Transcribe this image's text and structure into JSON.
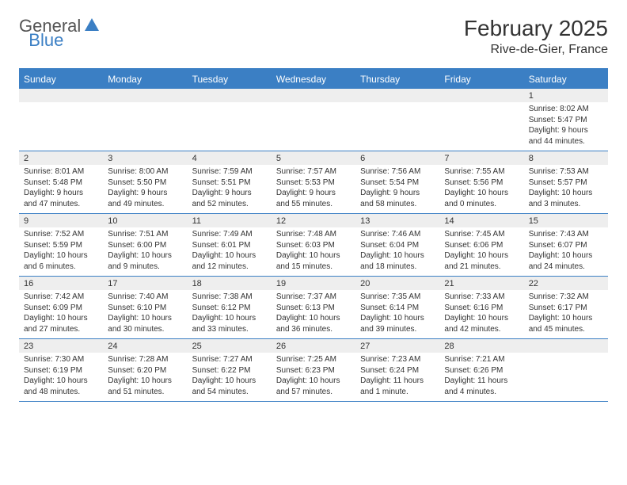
{
  "logo": {
    "part1": "General",
    "part2": "Blue"
  },
  "title": "February 2025",
  "location": "Rive-de-Gier, France",
  "colors": {
    "accent": "#3b7fc4",
    "header_bg": "#3b7fc4",
    "header_text": "#ffffff",
    "daynum_bg": "#eeeeee",
    "text": "#333333",
    "background": "#ffffff"
  },
  "day_names": [
    "Sunday",
    "Monday",
    "Tuesday",
    "Wednesday",
    "Thursday",
    "Friday",
    "Saturday"
  ],
  "weeks": [
    [
      null,
      null,
      null,
      null,
      null,
      null,
      {
        "n": "1",
        "sr": "Sunrise: 8:02 AM",
        "ss": "Sunset: 5:47 PM",
        "d1": "Daylight: 9 hours",
        "d2": "and 44 minutes."
      }
    ],
    [
      {
        "n": "2",
        "sr": "Sunrise: 8:01 AM",
        "ss": "Sunset: 5:48 PM",
        "d1": "Daylight: 9 hours",
        "d2": "and 47 minutes."
      },
      {
        "n": "3",
        "sr": "Sunrise: 8:00 AM",
        "ss": "Sunset: 5:50 PM",
        "d1": "Daylight: 9 hours",
        "d2": "and 49 minutes."
      },
      {
        "n": "4",
        "sr": "Sunrise: 7:59 AM",
        "ss": "Sunset: 5:51 PM",
        "d1": "Daylight: 9 hours",
        "d2": "and 52 minutes."
      },
      {
        "n": "5",
        "sr": "Sunrise: 7:57 AM",
        "ss": "Sunset: 5:53 PM",
        "d1": "Daylight: 9 hours",
        "d2": "and 55 minutes."
      },
      {
        "n": "6",
        "sr": "Sunrise: 7:56 AM",
        "ss": "Sunset: 5:54 PM",
        "d1": "Daylight: 9 hours",
        "d2": "and 58 minutes."
      },
      {
        "n": "7",
        "sr": "Sunrise: 7:55 AM",
        "ss": "Sunset: 5:56 PM",
        "d1": "Daylight: 10 hours",
        "d2": "and 0 minutes."
      },
      {
        "n": "8",
        "sr": "Sunrise: 7:53 AM",
        "ss": "Sunset: 5:57 PM",
        "d1": "Daylight: 10 hours",
        "d2": "and 3 minutes."
      }
    ],
    [
      {
        "n": "9",
        "sr": "Sunrise: 7:52 AM",
        "ss": "Sunset: 5:59 PM",
        "d1": "Daylight: 10 hours",
        "d2": "and 6 minutes."
      },
      {
        "n": "10",
        "sr": "Sunrise: 7:51 AM",
        "ss": "Sunset: 6:00 PM",
        "d1": "Daylight: 10 hours",
        "d2": "and 9 minutes."
      },
      {
        "n": "11",
        "sr": "Sunrise: 7:49 AM",
        "ss": "Sunset: 6:01 PM",
        "d1": "Daylight: 10 hours",
        "d2": "and 12 minutes."
      },
      {
        "n": "12",
        "sr": "Sunrise: 7:48 AM",
        "ss": "Sunset: 6:03 PM",
        "d1": "Daylight: 10 hours",
        "d2": "and 15 minutes."
      },
      {
        "n": "13",
        "sr": "Sunrise: 7:46 AM",
        "ss": "Sunset: 6:04 PM",
        "d1": "Daylight: 10 hours",
        "d2": "and 18 minutes."
      },
      {
        "n": "14",
        "sr": "Sunrise: 7:45 AM",
        "ss": "Sunset: 6:06 PM",
        "d1": "Daylight: 10 hours",
        "d2": "and 21 minutes."
      },
      {
        "n": "15",
        "sr": "Sunrise: 7:43 AM",
        "ss": "Sunset: 6:07 PM",
        "d1": "Daylight: 10 hours",
        "d2": "and 24 minutes."
      }
    ],
    [
      {
        "n": "16",
        "sr": "Sunrise: 7:42 AM",
        "ss": "Sunset: 6:09 PM",
        "d1": "Daylight: 10 hours",
        "d2": "and 27 minutes."
      },
      {
        "n": "17",
        "sr": "Sunrise: 7:40 AM",
        "ss": "Sunset: 6:10 PM",
        "d1": "Daylight: 10 hours",
        "d2": "and 30 minutes."
      },
      {
        "n": "18",
        "sr": "Sunrise: 7:38 AM",
        "ss": "Sunset: 6:12 PM",
        "d1": "Daylight: 10 hours",
        "d2": "and 33 minutes."
      },
      {
        "n": "19",
        "sr": "Sunrise: 7:37 AM",
        "ss": "Sunset: 6:13 PM",
        "d1": "Daylight: 10 hours",
        "d2": "and 36 minutes."
      },
      {
        "n": "20",
        "sr": "Sunrise: 7:35 AM",
        "ss": "Sunset: 6:14 PM",
        "d1": "Daylight: 10 hours",
        "d2": "and 39 minutes."
      },
      {
        "n": "21",
        "sr": "Sunrise: 7:33 AM",
        "ss": "Sunset: 6:16 PM",
        "d1": "Daylight: 10 hours",
        "d2": "and 42 minutes."
      },
      {
        "n": "22",
        "sr": "Sunrise: 7:32 AM",
        "ss": "Sunset: 6:17 PM",
        "d1": "Daylight: 10 hours",
        "d2": "and 45 minutes."
      }
    ],
    [
      {
        "n": "23",
        "sr": "Sunrise: 7:30 AM",
        "ss": "Sunset: 6:19 PM",
        "d1": "Daylight: 10 hours",
        "d2": "and 48 minutes."
      },
      {
        "n": "24",
        "sr": "Sunrise: 7:28 AM",
        "ss": "Sunset: 6:20 PM",
        "d1": "Daylight: 10 hours",
        "d2": "and 51 minutes."
      },
      {
        "n": "25",
        "sr": "Sunrise: 7:27 AM",
        "ss": "Sunset: 6:22 PM",
        "d1": "Daylight: 10 hours",
        "d2": "and 54 minutes."
      },
      {
        "n": "26",
        "sr": "Sunrise: 7:25 AM",
        "ss": "Sunset: 6:23 PM",
        "d1": "Daylight: 10 hours",
        "d2": "and 57 minutes."
      },
      {
        "n": "27",
        "sr": "Sunrise: 7:23 AM",
        "ss": "Sunset: 6:24 PM",
        "d1": "Daylight: 11 hours",
        "d2": "and 1 minute."
      },
      {
        "n": "28",
        "sr": "Sunrise: 7:21 AM",
        "ss": "Sunset: 6:26 PM",
        "d1": "Daylight: 11 hours",
        "d2": "and 4 minutes."
      },
      null
    ]
  ]
}
